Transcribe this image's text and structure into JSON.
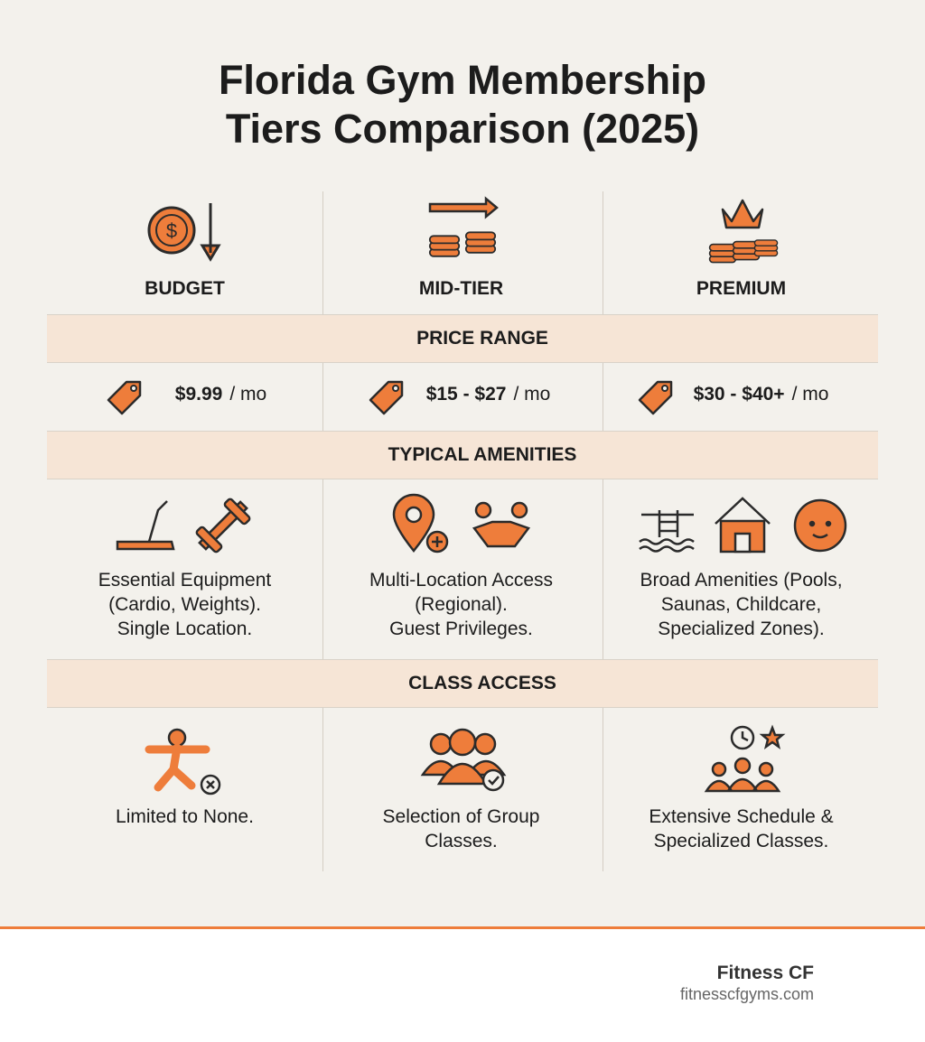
{
  "header": {
    "title_lines": [
      "Florida Gym Membership",
      "Tiers Comparison (2025)"
    ]
  },
  "table": {
    "columns": [
      "BUDGET",
      "MID-TIER",
      "PREMIUM"
    ],
    "price_section": {
      "label": "PRICE RANGE",
      "cells": [
        {
          "price": "$9.99",
          "unit": "/ mo"
        },
        {
          "price": "$15 - $27",
          "unit": "/ mo"
        },
        {
          "price": "$30 - $40+",
          "unit": "/ mo"
        }
      ]
    },
    "amenities_section": {
      "label": "TYPICAL AMENITIES",
      "cells": [
        [
          "Essential Equipment",
          "(Cardio, Weights).",
          "Single Location."
        ],
        [
          "Multi-Location Access",
          "(Regional).",
          "Guest Privileges."
        ],
        [
          "Broad Amenities (Pools,",
          "Saunas, Childcare,",
          "Specialized Zones)."
        ]
      ]
    },
    "class_section": {
      "label": "CLASS ACCESS",
      "cells": [
        [
          "Limited to None."
        ],
        [
          "Selection of Group",
          "Classes."
        ],
        [
          "Extensive Schedule &",
          "Specialized Classes."
        ]
      ]
    }
  },
  "footer": {
    "brand": "Fitness CF",
    "url": "fitnesscfgyms.com"
  }
}
